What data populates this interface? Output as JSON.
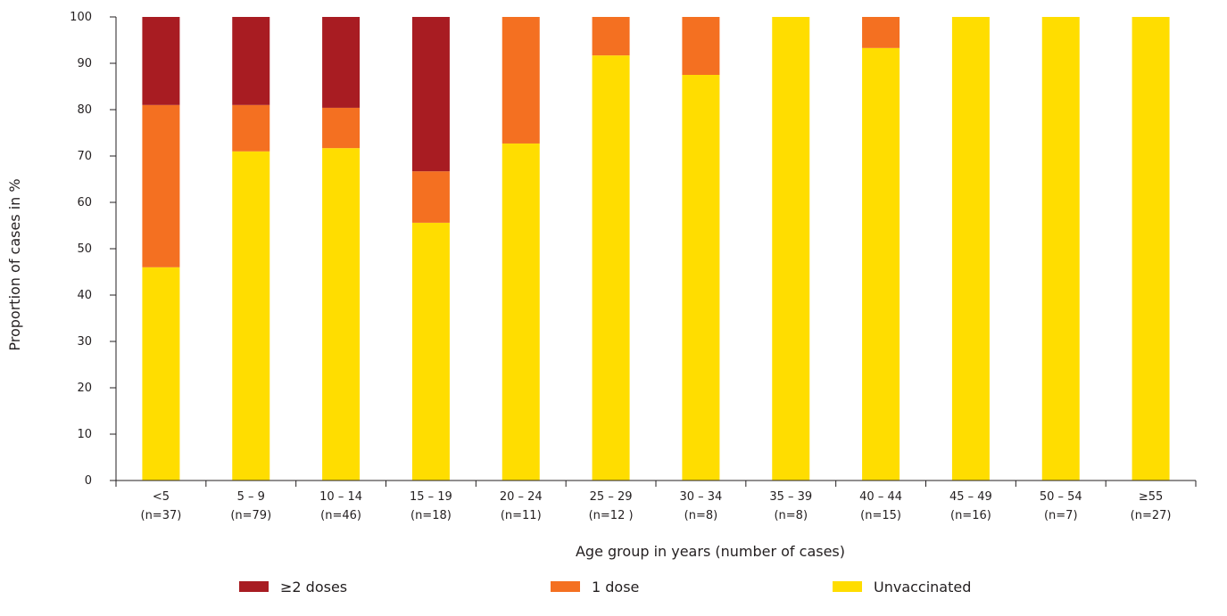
{
  "chart_data": {
    "type": "bar",
    "stacked": true,
    "xlabel": "Age group in years (number of cases)",
    "ylabel": "Proportion of cases in %",
    "ylim": [
      0,
      100
    ],
    "yticks": [
      "0",
      "10",
      "20",
      "30",
      "40",
      "50",
      "60",
      "70",
      "80",
      "90",
      "100"
    ],
    "grid": false,
    "legend_position": "bottom",
    "categories": [
      {
        "age": "<5",
        "n": "(n=37)"
      },
      {
        "age": "5 – 9",
        "n": "(n=79)"
      },
      {
        "age": "10 – 14",
        "n": "(n=46)"
      },
      {
        "age": "15 – 19",
        "n": "(n=18)"
      },
      {
        "age": "20 – 24",
        "n": "(n=11)"
      },
      {
        "age": "25 – 29",
        "n": "(n=12 )"
      },
      {
        "age": "30 – 34",
        "n": "(n=8)"
      },
      {
        "age": "35 – 39",
        "n": "(n=8)"
      },
      {
        "age": "40 – 44",
        "n": "(n=15)"
      },
      {
        "age": "45 – 49",
        "n": "(n=16)"
      },
      {
        "age": "50 – 54",
        "n": "(n=7)"
      },
      {
        "age": "≥55",
        "n": "(n=27)"
      }
    ],
    "series": [
      {
        "name": "Unvaccinated",
        "color": "#ffdd00",
        "values": [
          46,
          71,
          71.7,
          55.6,
          72.7,
          91.7,
          87.5,
          100,
          93.3,
          100,
          100,
          100
        ]
      },
      {
        "name": "1 dose",
        "color": "#f47021",
        "values": [
          35,
          10,
          8.7,
          11.1,
          27.3,
          8.3,
          12.5,
          0,
          6.7,
          0,
          0,
          0
        ]
      },
      {
        "name": "≥2 doses",
        "color": "#a81c22",
        "values": [
          19,
          19,
          19.6,
          33.3,
          0,
          0,
          0,
          0,
          0,
          0,
          0,
          0
        ]
      }
    ],
    "legend_order": [
      "≥2 doses",
      "1 dose",
      "Unvaccinated"
    ]
  }
}
